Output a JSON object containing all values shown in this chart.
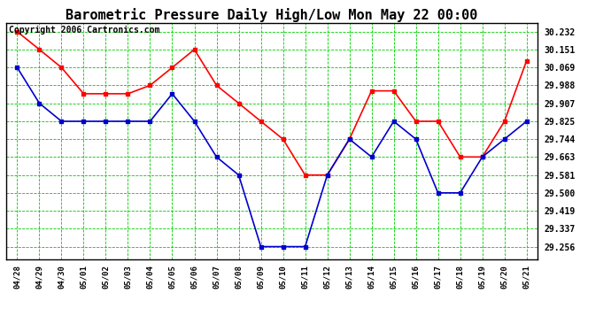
{
  "title": "Barometric Pressure Daily High/Low Mon May 22 00:00",
  "copyright": "Copyright 2006 Cartronics.com",
  "x_labels": [
    "04/28",
    "04/29",
    "04/30",
    "05/01",
    "05/02",
    "05/03",
    "05/04",
    "05/05",
    "05/06",
    "05/07",
    "05/08",
    "05/09",
    "05/10",
    "05/11",
    "05/12",
    "05/13",
    "05/14",
    "05/15",
    "05/16",
    "05/17",
    "05/18",
    "05/19",
    "05/20",
    "05/21"
  ],
  "high_values": [
    30.232,
    30.151,
    30.069,
    29.95,
    29.95,
    29.95,
    29.988,
    30.069,
    30.151,
    29.988,
    29.907,
    29.825,
    29.744,
    29.581,
    29.581,
    29.744,
    29.963,
    29.963,
    29.825,
    29.825,
    29.663,
    29.663,
    29.825,
    30.1
  ],
  "low_values": [
    30.069,
    29.907,
    29.825,
    29.825,
    29.825,
    29.825,
    29.825,
    29.95,
    29.825,
    29.663,
    29.581,
    29.256,
    29.256,
    29.256,
    29.581,
    29.744,
    29.663,
    29.825,
    29.744,
    29.5,
    29.5,
    29.663,
    29.744,
    29.825
  ],
  "high_color": "#ff0000",
  "low_color": "#0000cc",
  "grid_color": "#00cc00",
  "bg_color": "#ffffff",
  "plot_bg_color": "#ffffff",
  "yticks": [
    29.256,
    29.337,
    29.419,
    29.5,
    29.581,
    29.663,
    29.744,
    29.825,
    29.907,
    29.988,
    30.069,
    30.151,
    30.232
  ],
  "ylim": [
    29.2,
    30.27
  ],
  "title_fontsize": 11,
  "copyright_fontsize": 7,
  "marker": "s",
  "marker_size": 3,
  "line_width": 1.2
}
